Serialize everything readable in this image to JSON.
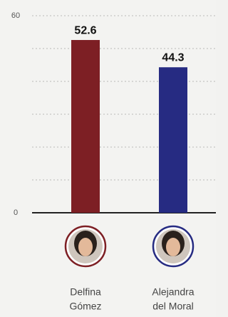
{
  "chart_data": {
    "type": "bar",
    "categories": [
      [
        "Delfina",
        "Gómez"
      ],
      [
        "Alejandra",
        "del Moral"
      ]
    ],
    "series": [
      {
        "values": [
          52.6,
          44.3
        ],
        "colors": [
          "#7d1f24",
          "#262b82"
        ]
      }
    ],
    "ylim": [
      0,
      60
    ],
    "yticks": [
      0,
      60
    ],
    "grid_lines": [
      10,
      20,
      30,
      40,
      50
    ],
    "grid": true
  }
}
